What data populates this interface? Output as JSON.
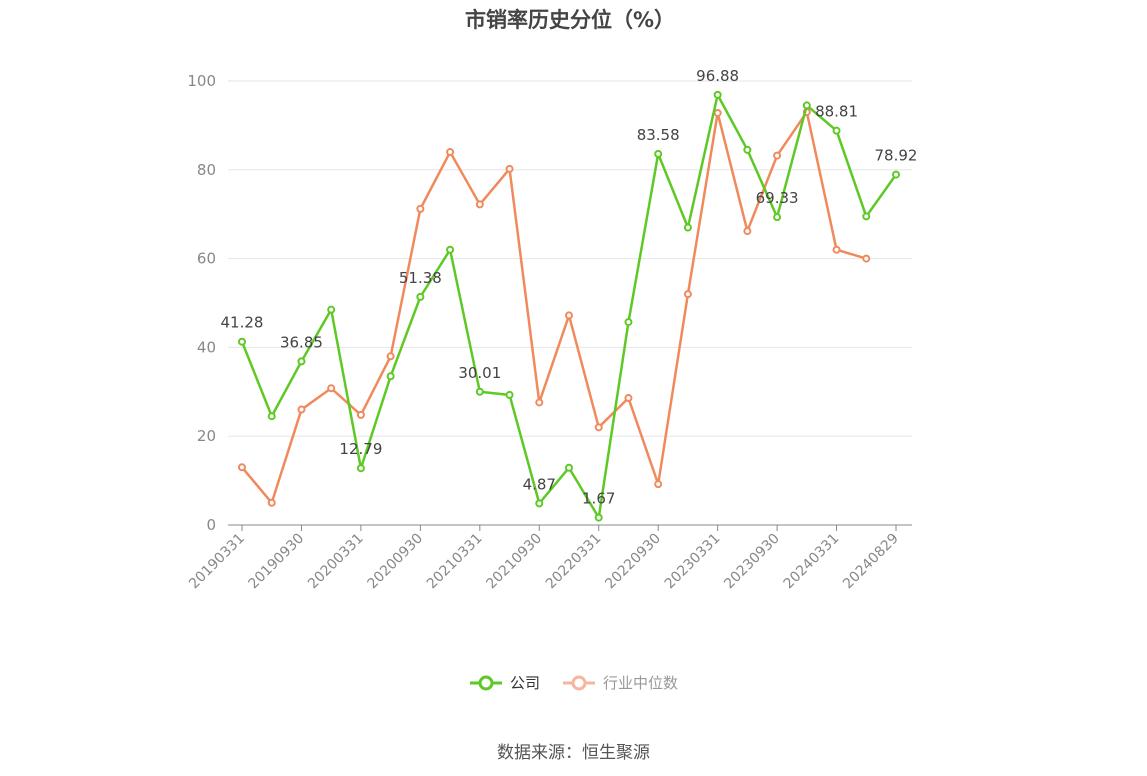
{
  "title": "市销率历史分位（%）",
  "source": "数据来源：恒生聚源",
  "colors": {
    "company": "#5ec925",
    "industry": "#f08a5d",
    "industry_legend": "#f6b69c",
    "axis": "#888888",
    "grid": "#e6e6ea",
    "label": "#444444"
  },
  "chart_data": {
    "type": "line",
    "ylim": [
      0,
      100
    ],
    "yticks": [
      0,
      20,
      40,
      60,
      80,
      100
    ],
    "xtick_labels": [
      "20190331",
      "20190930",
      "20200331",
      "20200930",
      "20210331",
      "20210930",
      "20220331",
      "20220930",
      "20230331",
      "20230930",
      "20240331",
      "20240829"
    ],
    "x": [
      "20190331",
      "20190630",
      "20190930",
      "20191231",
      "20200331",
      "20200630",
      "20200930",
      "20201231",
      "20210331",
      "20210630",
      "20210930",
      "20211231",
      "20220331",
      "20220630",
      "20220930",
      "20221231",
      "20230331",
      "20230630",
      "20230930",
      "20231231",
      "20240331",
      "20240630",
      "20240829"
    ],
    "series": [
      {
        "name": "公司",
        "values": [
          41.28,
          24.5,
          36.85,
          48.5,
          12.79,
          33.5,
          51.38,
          62.0,
          30.01,
          29.3,
          4.87,
          12.9,
          1.67,
          45.7,
          83.58,
          67.0,
          96.88,
          84.5,
          69.33,
          94.5,
          88.81,
          69.5,
          78.92
        ]
      },
      {
        "name": "行业中位数",
        "values": [
          13.0,
          5.0,
          26.0,
          30.8,
          24.8,
          38.0,
          71.2,
          84.0,
          72.2,
          80.2,
          27.6,
          47.2,
          22.0,
          28.6,
          9.2,
          52.0,
          92.8,
          66.2,
          83.2,
          93.0,
          62.0,
          60.0,
          null
        ]
      }
    ],
    "data_labels": [
      {
        "index": 0,
        "text": "41.28"
      },
      {
        "index": 2,
        "text": "36.85"
      },
      {
        "index": 4,
        "text": "12.79"
      },
      {
        "index": 6,
        "text": "51.38"
      },
      {
        "index": 8,
        "text": "30.01"
      },
      {
        "index": 10,
        "text": "4.87"
      },
      {
        "index": 12,
        "text": "1.67"
      },
      {
        "index": 14,
        "text": "83.58"
      },
      {
        "index": 16,
        "text": "96.88"
      },
      {
        "index": 18,
        "text": "69.33"
      },
      {
        "index": 20,
        "text": "88.81"
      },
      {
        "index": 22,
        "text": "78.92"
      }
    ]
  }
}
